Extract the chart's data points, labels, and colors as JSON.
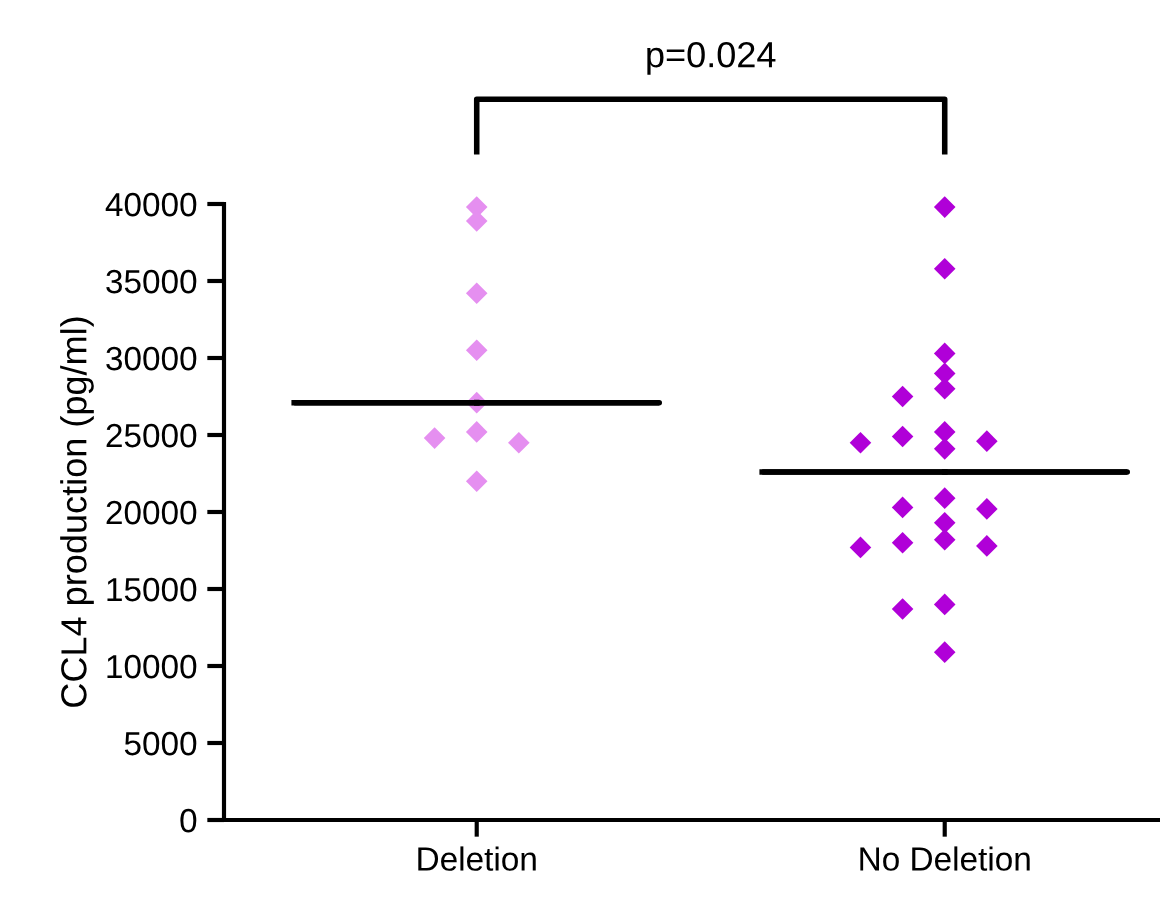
{
  "chart_data": {
    "type": "scatter",
    "categories": [
      "Deletion",
      "No Deletion"
    ],
    "ylabel": "CCL4 production (pg/ml)",
    "ylim": [
      0,
      40000
    ],
    "yticks": [
      0,
      5000,
      10000,
      15000,
      20000,
      25000,
      30000,
      35000,
      40000
    ],
    "marker": "diamond",
    "grid": false,
    "legend": false,
    "annotations": [
      "p=0.024"
    ],
    "series": [
      {
        "color": "#e58ff0",
        "x": [
          "Deletion",
          "Deletion",
          "Deletion",
          "Deletion",
          "Deletion",
          "Deletion",
          "Deletion",
          "Deletion",
          "Deletion"
        ],
        "values": [
          39800,
          38900,
          34200,
          30500,
          27100,
          24800,
          24500,
          25200,
          22000
        ]
      },
      {
        "color": "#b000d8",
        "x": [
          "No Deletion",
          "No Deletion",
          "No Deletion",
          "No Deletion",
          "No Deletion",
          "No Deletion",
          "No Deletion",
          "No Deletion",
          "No Deletion",
          "No Deletion",
          "No Deletion",
          "No Deletion",
          "No Deletion",
          "No Deletion",
          "No Deletion",
          "No Deletion",
          "No Deletion",
          "No Deletion",
          "No Deletion",
          "No Deletion",
          "No Deletion",
          "No Deletion"
        ],
        "values": [
          39800,
          35800,
          30300,
          29000,
          28000,
          27500,
          25200,
          24600,
          24100,
          24500,
          24900,
          20900,
          20300,
          20200,
          19300,
          18000,
          17700,
          17800,
          18200,
          14000,
          13700,
          10900
        ]
      },
      {
        "type": "box",
        "color": "#000000",
        "boxes": [
          {
            "low": 27100,
            "q1": 27100,
            "median": 27100,
            "q3": 27100,
            "high": 27100
          },
          {
            "low": 22600,
            "q1": 22600,
            "median": 22600,
            "q3": 22600,
            "high": 22600
          }
        ]
      }
    ]
  }
}
